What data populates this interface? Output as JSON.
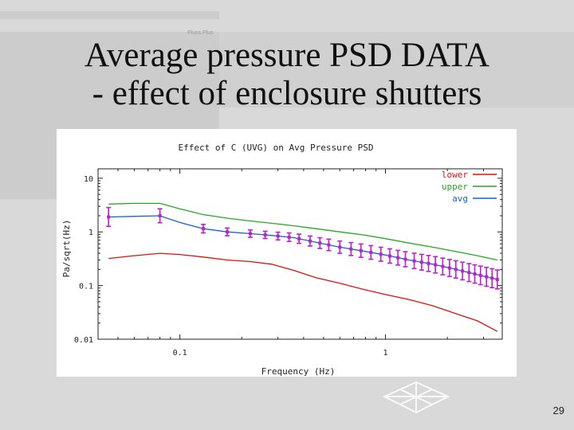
{
  "slide": {
    "title_line1": "Average pressure PSD DATA",
    "title_line2": "- effect of enclosure shutters",
    "watermark": "Pluss Plus",
    "page_number": "29"
  },
  "chart_data": {
    "type": "line",
    "title": "Effect of C (UVG) on Avg Pressure PSD",
    "xlabel": "Frequency (Hz)",
    "ylabel": "Pa/sqrt(Hz)",
    "xscale": "log",
    "yscale": "log",
    "xlim": [
      0.04,
      3.7
    ],
    "ylim": [
      0.01,
      15
    ],
    "x_ticks": [
      0.1,
      1
    ],
    "x_tick_labels": [
      "0.1",
      "1"
    ],
    "y_ticks": [
      0.01,
      0.1,
      1,
      10
    ],
    "y_tick_labels": [
      "0.01",
      "0.1",
      "1",
      "10"
    ],
    "legend_position": "top-right",
    "series": [
      {
        "name": "lower",
        "color": "#dd1111",
        "x": [
          0.045,
          0.06,
          0.08,
          0.1,
          0.13,
          0.17,
          0.22,
          0.28,
          0.36,
          0.46,
          0.6,
          0.78,
          1.0,
          1.3,
          1.7,
          2.2,
          2.8,
          3.5
        ],
        "y": [
          0.32,
          0.36,
          0.4,
          0.38,
          0.34,
          0.3,
          0.28,
          0.25,
          0.19,
          0.14,
          0.11,
          0.085,
          0.068,
          0.055,
          0.042,
          0.03,
          0.022,
          0.014
        ]
      },
      {
        "name": "upper",
        "color": "#22aa22",
        "x": [
          0.045,
          0.06,
          0.08,
          0.1,
          0.13,
          0.17,
          0.22,
          0.28,
          0.36,
          0.46,
          0.6,
          0.78,
          1.0,
          1.3,
          1.7,
          2.2,
          2.8,
          3.5
        ],
        "y": [
          3.3,
          3.4,
          3.4,
          2.7,
          2.1,
          1.8,
          1.6,
          1.45,
          1.3,
          1.15,
          1.0,
          0.88,
          0.75,
          0.62,
          0.52,
          0.43,
          0.36,
          0.3
        ]
      },
      {
        "name": "avg",
        "color": "#1166cc",
        "x": [
          0.045,
          0.06,
          0.08,
          0.1,
          0.13,
          0.17,
          0.22,
          0.28,
          0.36,
          0.46,
          0.6,
          0.78,
          1.0,
          1.3,
          1.7,
          2.2,
          2.8,
          3.5
        ],
        "y": [
          1.9,
          1.95,
          2.0,
          1.5,
          1.15,
          1.0,
          0.93,
          0.86,
          0.78,
          0.64,
          0.52,
          0.44,
          0.37,
          0.3,
          0.25,
          0.2,
          0.16,
          0.13
        ],
        "error_bars": {
          "color": "#bb22cc",
          "x": [
            0.045,
            0.08,
            0.13,
            0.17,
            0.22,
            0.26,
            0.3,
            0.34,
            0.38,
            0.43,
            0.48,
            0.53,
            0.6,
            0.68,
            0.76,
            0.85,
            0.95,
            1.05,
            1.15,
            1.25,
            1.38,
            1.5,
            1.62,
            1.75,
            1.9,
            2.05,
            2.2,
            2.37,
            2.55,
            2.72,
            2.9,
            3.1,
            3.3,
            3.5
          ],
          "rel_err": [
            0.5,
            0.35,
            0.2,
            0.18,
            0.17,
            0.17,
            0.18,
            0.2,
            0.22,
            0.24,
            0.26,
            0.28,
            0.3,
            0.32,
            0.33,
            0.34,
            0.35,
            0.36,
            0.37,
            0.38,
            0.39,
            0.4,
            0.41,
            0.42,
            0.43,
            0.44,
            0.45,
            0.46,
            0.47,
            0.48,
            0.49,
            0.5,
            0.5,
            0.5
          ]
        }
      }
    ]
  }
}
